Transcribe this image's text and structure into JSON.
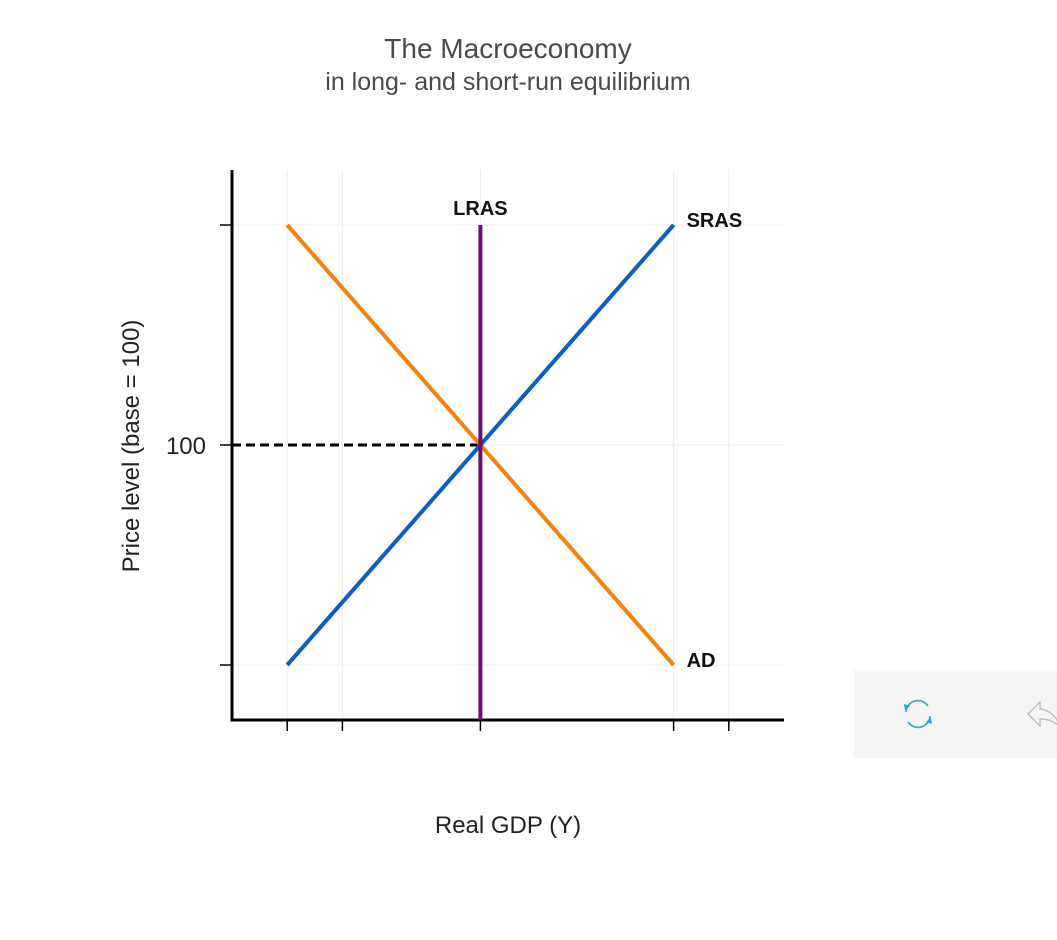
{
  "chart_data": {
    "type": "line",
    "title": "The Macroeconomy",
    "subtitle": "in long- and short-run equilibrium",
    "xlabel": "Real GDP (Y)",
    "ylabel": "Price level (base = 100)",
    "xlim": [
      0,
      10
    ],
    "ylim": [
      0,
      10
    ],
    "y_tick_labels": [
      {
        "value": 5,
        "label": "100"
      }
    ],
    "grid": true,
    "series": [
      {
        "name": "AD",
        "color": "#f5820d",
        "points": [
          [
            1,
            9
          ],
          [
            8,
            1
          ]
        ]
      },
      {
        "name": "SRAS",
        "color": "#0b5fbd",
        "points": [
          [
            1,
            1
          ],
          [
            8,
            9
          ]
        ]
      },
      {
        "name": "LRAS",
        "color": "#6a0f6e",
        "points": [
          [
            4.5,
            0
          ],
          [
            4.5,
            9
          ]
        ]
      }
    ],
    "reference_lines": [
      {
        "from": [
          0,
          5
        ],
        "to": [
          4.5,
          5
        ],
        "style": "dashed",
        "color": "#000000"
      }
    ]
  },
  "controls": {
    "reset_icon": "refresh-icon",
    "undo_icon": "undo-arrow-icon",
    "accent": "#2aa4d6"
  }
}
